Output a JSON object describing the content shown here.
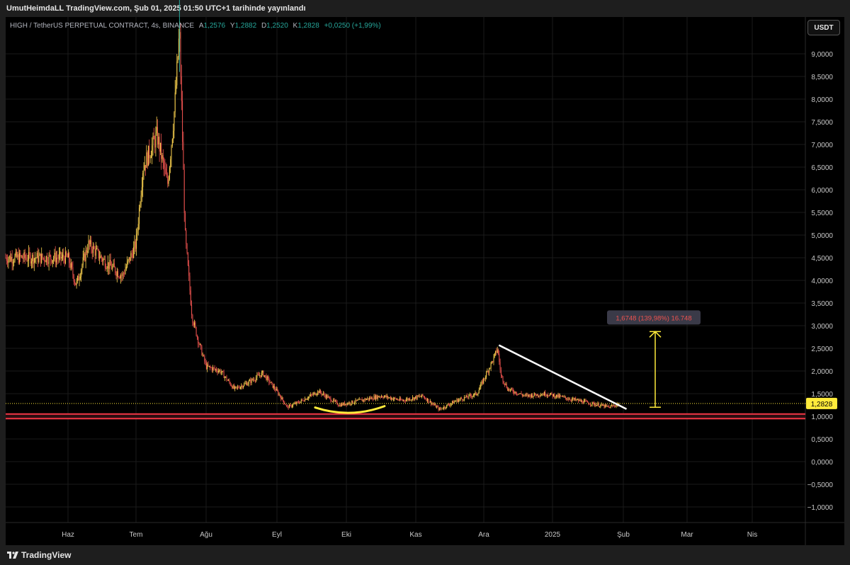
{
  "header": {
    "publisher": "UmutHeimdaLL TradingView.com, Şub 01, 2025 01:50 UTC+1 tarihinde yayınlandı"
  },
  "legend": {
    "symbol": "HIGH / TetherUS PERPETUAL CONTRACT, 4s, BINANCE",
    "open_key": "A",
    "open": "1,2576",
    "high_key": "Y",
    "high": "1,2882",
    "low_key": "D",
    "low": "1,2520",
    "close_key": "K",
    "close": "1,2828",
    "change": "+0,0250 (+1,99%)"
  },
  "currency_button": "USDT",
  "current_price_label": "1,2828",
  "measure_label": "1,6748 (139,98%) 16.748",
  "footer": {
    "brand": "TradingView"
  },
  "colors": {
    "up": "#26a69a",
    "down": "#ef5350",
    "price_line": "#ffeb3b",
    "support": "#f23645",
    "trendline": "#ffffff",
    "measure": "#ffeb3b"
  },
  "chart_data": {
    "type": "candlestick",
    "title": "HIGH / TetherUS PERPETUAL CONTRACT, 4s, BINANCE",
    "y_ticks": [
      "9,0000",
      "8,5000",
      "8,0000",
      "7,5000",
      "7,0000",
      "6,5000",
      "6,0000",
      "5,5000",
      "5,0000",
      "4,5000",
      "4,0000",
      "3,5000",
      "3,0000",
      "2,5000",
      "2,0000",
      "1,5000",
      "1,0000",
      "0,5000",
      "0,0000",
      "−0,5000",
      "−1,0000"
    ],
    "y_tick_values": [
      9,
      8.5,
      8,
      7.5,
      7,
      6.5,
      6,
      5.5,
      5,
      4.5,
      4,
      3.5,
      3,
      2.5,
      2,
      1.5,
      1,
      0.5,
      0,
      -0.5,
      -1
    ],
    "x_ticks": [
      "Haz",
      "Tem",
      "Ağu",
      "Eyl",
      "Eki",
      "Kas",
      "Ara",
      "2025",
      "Şub",
      "Mar",
      "Nis"
    ],
    "ylim": [
      -1.2,
      10.2
    ],
    "price_path": [
      {
        "x": 0,
        "y": 4.5
      },
      {
        "x": 0.12,
        "y": 3.9
      },
      {
        "x": 0.3,
        "y": 4.8
      },
      {
        "x": 0.55,
        "y": 4.4
      },
      {
        "x": 0.8,
        "y": 4.1
      },
      {
        "x": 1.0,
        "y": 4.8
      },
      {
        "x": 1.1,
        "y": 6.5
      },
      {
        "x": 1.3,
        "y": 7.2
      },
      {
        "x": 1.45,
        "y": 6.1
      },
      {
        "x": 1.55,
        "y": 7.8
      },
      {
        "x": 1.62,
        "y": 9.5
      },
      {
        "x": 1.7,
        "y": 5.0
      },
      {
        "x": 1.8,
        "y": 3.2
      },
      {
        "x": 1.9,
        "y": 2.6
      },
      {
        "x": 2.0,
        "y": 2.1
      },
      {
        "x": 2.2,
        "y": 2.0
      },
      {
        "x": 2.4,
        "y": 1.6
      },
      {
        "x": 2.6,
        "y": 1.75
      },
      {
        "x": 2.8,
        "y": 1.95
      },
      {
        "x": 3.0,
        "y": 1.55
      },
      {
        "x": 3.15,
        "y": 1.2
      },
      {
        "x": 3.3,
        "y": 1.3
      },
      {
        "x": 3.6,
        "y": 1.55
      },
      {
        "x": 3.9,
        "y": 1.25
      },
      {
        "x": 4.2,
        "y": 1.35
      },
      {
        "x": 4.5,
        "y": 1.45
      },
      {
        "x": 4.8,
        "y": 1.35
      },
      {
        "x": 5.1,
        "y": 1.45
      },
      {
        "x": 5.35,
        "y": 1.15
      },
      {
        "x": 5.6,
        "y": 1.35
      },
      {
        "x": 5.9,
        "y": 1.5
      },
      {
        "x": 6.15,
        "y": 2.3
      },
      {
        "x": 6.2,
        "y": 2.5
      },
      {
        "x": 6.25,
        "y": 1.9
      },
      {
        "x": 6.35,
        "y": 1.6
      },
      {
        "x": 6.6,
        "y": 1.45
      },
      {
        "x": 6.9,
        "y": 1.5
      },
      {
        "x": 7.2,
        "y": 1.4
      },
      {
        "x": 7.5,
        "y": 1.3
      },
      {
        "x": 7.8,
        "y": 1.2
      },
      {
        "x": 7.95,
        "y": 1.28
      }
    ],
    "current_price": 1.2828,
    "support_zone": [
      0.95,
      1.05
    ],
    "trendline": [
      {
        "x": 6.22,
        "y": 2.57
      },
      {
        "x": 8.05,
        "y": 1.16
      }
    ],
    "measure": {
      "x": 8.5,
      "from": 1.2,
      "to": 2.87
    },
    "bowl": {
      "x_start": 3.55,
      "x_end": 4.55,
      "y": 1.1
    }
  }
}
